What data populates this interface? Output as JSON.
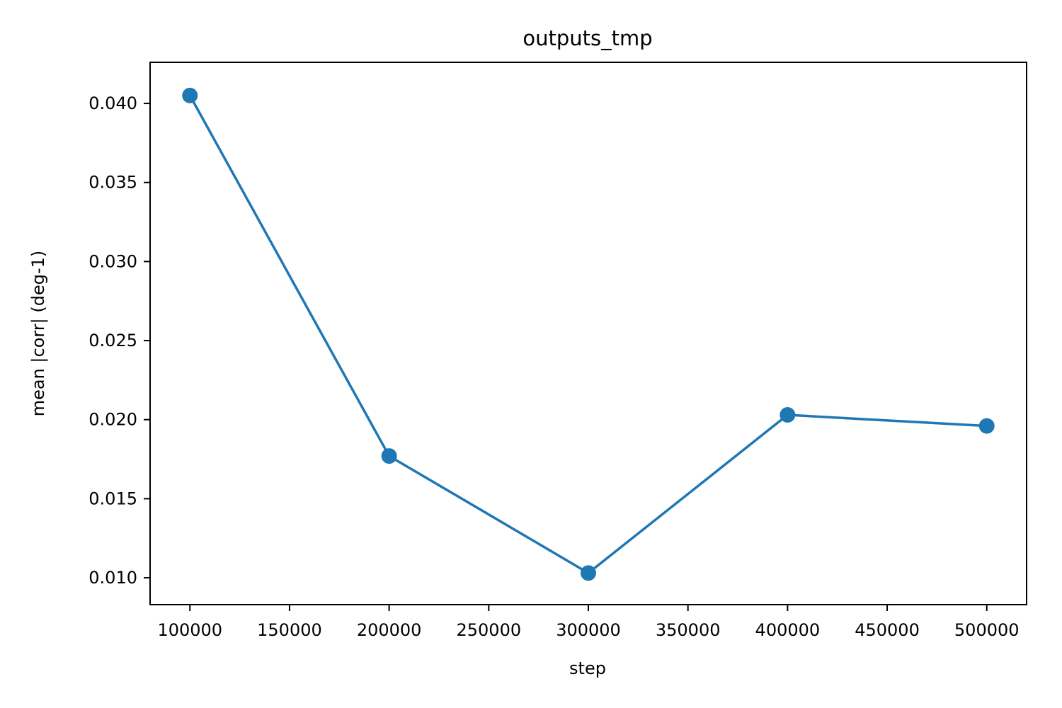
{
  "chart_data": {
    "type": "line",
    "title": "outputs_tmp",
    "xlabel": "step",
    "ylabel": "mean |corr| (deg-1)",
    "x": [
      100000,
      200000,
      300000,
      400000,
      500000
    ],
    "series": [
      {
        "values": [
          0.0405,
          0.0177,
          0.0103,
          0.0203,
          0.0196
        ],
        "color": "#1f77b4",
        "marker": "circle"
      }
    ],
    "xlim": [
      80000,
      520000
    ],
    "ylim": [
      0.0083,
      0.0426
    ],
    "xticks": [
      100000,
      150000,
      200000,
      250000,
      300000,
      350000,
      400000,
      450000,
      500000
    ],
    "yticks": [
      0.01,
      0.015,
      0.02,
      0.025,
      0.03,
      0.035,
      0.04
    ],
    "ytick_labels": [
      "0.010",
      "0.015",
      "0.020",
      "0.025",
      "0.030",
      "0.035",
      "0.040"
    ],
    "grid": false,
    "legend": false
  }
}
